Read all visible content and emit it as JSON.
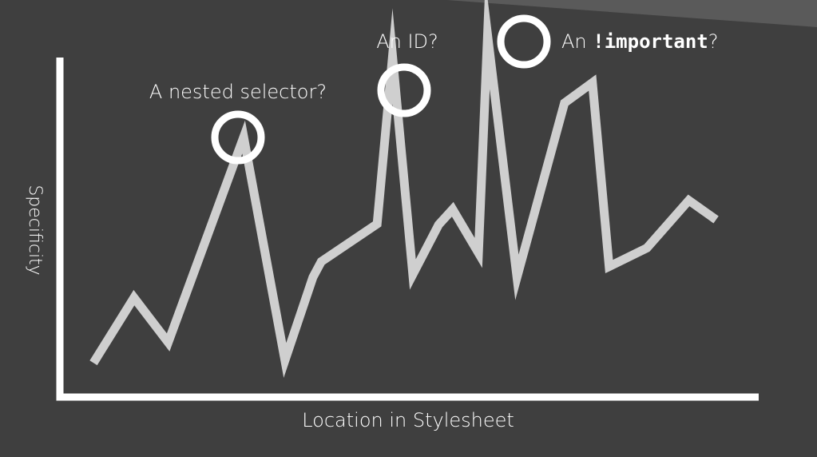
{
  "chart_data": {
    "type": "line",
    "xlabel": "Location in Stylesheet",
    "ylabel": "Specificity",
    "xlim": [
      0,
      100
    ],
    "ylim": [
      0,
      100
    ],
    "grid": false,
    "series": [
      {
        "x": [
          4.8,
          10.6,
          15.5,
          26.3,
          32.2,
          36.2,
          37.4,
          45.4,
          47.6,
          50.5,
          54.2,
          56.2,
          59.9,
          61.2,
          65.4,
          72.2,
          76.2,
          78.6,
          84.0,
          90.0,
          93.9
        ],
        "y": [
          8.0,
          26.2,
          13.7,
          71.1,
          8.7,
          31.9,
          36.3,
          46.8,
          93.7,
          32.7,
          46.6,
          50.9,
          38.7,
          99.6,
          31.9,
          80.6,
          86.3,
          34.9,
          40.1,
          53.4,
          48.0
        ],
        "color": "#cfcfcf"
      }
    ],
    "annotations": [
      {
        "text": "A nested selector?",
        "point_index": 3
      },
      {
        "text": "An ID?",
        "point_index": 8
      },
      {
        "text_prefix": "An ",
        "text_code": "!important",
        "text_suffix": "?",
        "point_index": 13
      }
    ]
  }
}
